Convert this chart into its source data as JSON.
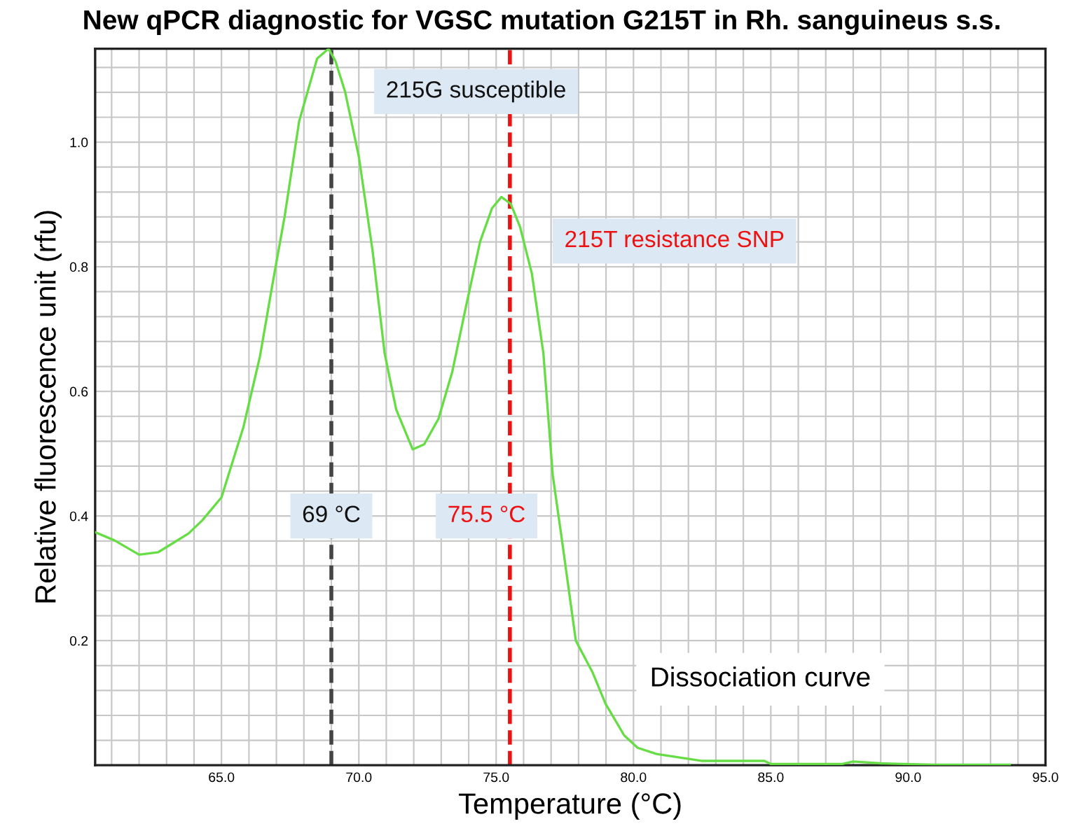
{
  "chart_data": {
    "type": "line",
    "title": "New qPCR diagnostic for VGSC mutation G215T in Rh. sanguineus s.s.",
    "xlabel": "Temperature (°C)",
    "ylabel": "Relative fluorescence unit (rfu)",
    "series": [
      {
        "color": "#66dd44",
        "x": [
          60.4,
          61.1,
          62.0,
          62.7,
          63.8,
          64.3,
          65.0,
          65.8,
          66.4,
          66.84,
          67.3,
          67.83,
          68.48,
          68.9,
          69.15,
          69.5,
          70.0,
          70.5,
          70.94,
          71.36,
          71.96,
          72.38,
          72.9,
          73.4,
          73.9,
          74.42,
          74.85,
          75.19,
          75.53,
          75.87,
          76.3,
          76.72,
          77.06,
          77.4,
          77.9,
          78.5,
          78.98,
          79.66,
          80.15,
          80.84,
          82.47,
          84.77,
          85.0,
          87.6,
          88.0,
          89.0,
          90.9,
          93.7
        ],
        "values": [
          0.374,
          0.361,
          0.338,
          0.342,
          0.372,
          0.393,
          0.43,
          0.543,
          0.656,
          0.768,
          0.881,
          1.034,
          1.134,
          1.15,
          1.13,
          1.081,
          0.977,
          0.826,
          0.661,
          0.571,
          0.507,
          0.515,
          0.556,
          0.631,
          0.736,
          0.841,
          0.894,
          0.912,
          0.901,
          0.864,
          0.789,
          0.661,
          0.466,
          0.36,
          0.2,
          0.15,
          0.099,
          0.048,
          0.028,
          0.018,
          0.007,
          0.007,
          0.002,
          0.002,
          0.006,
          0.003,
          0.001,
          0.001
        ]
      }
    ],
    "xlim": [
      60.4,
      95
    ],
    "xticks": [
      {
        "value": 65,
        "label": "65.0"
      },
      {
        "value": 70,
        "label": "70.0"
      },
      {
        "value": 75,
        "label": "75.0"
      },
      {
        "value": 80,
        "label": "80.0"
      },
      {
        "value": 85,
        "label": "85.0"
      },
      {
        "value": 90,
        "label": "90.0"
      },
      {
        "value": 95,
        "label": "95.0"
      }
    ],
    "ylim": [
      0,
      1.15
    ],
    "yticks": [
      0.2,
      0.4,
      0.6,
      0.8,
      {
        "value": 1.0,
        "label": "1.0"
      }
    ],
    "grid": true,
    "marker": "none",
    "line_style": "solid",
    "legend": false,
    "ref_lines": [
      {
        "axis": "x",
        "value": 69,
        "label": "69 °C",
        "color": "#444444",
        "line_style": "dashed"
      },
      {
        "axis": "x",
        "value": 75.5,
        "label": "75.5 °C",
        "color": "#ee1111",
        "line_style": "dashed"
      }
    ],
    "annotations": [
      {
        "text": "215G susceptible",
        "x": 69,
        "y": 1.15
      },
      {
        "text": "215T resistance SNP",
        "x": 75.5,
        "y": 0.91
      },
      "Dissociation curve"
    ]
  }
}
